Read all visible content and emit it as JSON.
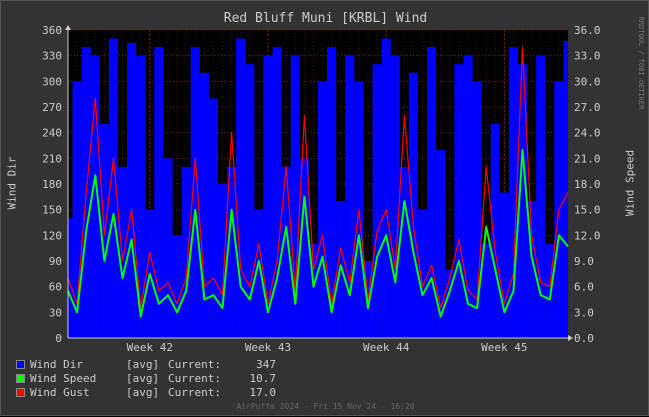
{
  "title": "Red Bluff Muni [KRBL] Wind",
  "left_axis_label": "Wind Dir",
  "right_axis_label": "Wind Speed",
  "watermark": "RRDTOOL / TOBI OETIKER",
  "footer": "AirPuffm 2024 - Fri 15 Nov 24 - 16:20",
  "colors": {
    "background": "#333333",
    "plot_area": "#000000",
    "grid": "#7a2020",
    "wind_dir": "#0000ff",
    "wind_speed": "#00ff00",
    "wind_gust": "#ff0000",
    "text": "#cccccc"
  },
  "legend": [
    {
      "name": "Wind Dir",
      "kind": "[avg]",
      "current_label": "Current:",
      "current": "347",
      "color": "#0000ff"
    },
    {
      "name": "Wind Speed",
      "kind": "[avg]",
      "current_label": "Current:",
      "current": "10.7",
      "color": "#00ff00"
    },
    {
      "name": "Wind Gust",
      "kind": "[avg]",
      "current_label": "Current:",
      "current": "17.0",
      "color": "#ff0000"
    }
  ],
  "chart_data": {
    "type": "line",
    "title": "Red Bluff Muni [KRBL] Wind",
    "ylabel": "Wind Dir",
    "y2label": "Wind Speed",
    "ylim": [
      0,
      360
    ],
    "y2lim": [
      0,
      36
    ],
    "y_ticks": [
      "0",
      "30",
      "60",
      "90",
      "120",
      "150",
      "180",
      "210",
      "240",
      "270",
      "300",
      "330",
      "360"
    ],
    "y2_ticks": [
      "0.0",
      "3.0",
      "6.0",
      "9.0",
      "12.0",
      "15.0",
      "18.0",
      "21.0",
      "24.0",
      "27.0",
      "30.0",
      "33.0",
      "36.0"
    ],
    "x_ticks": [
      {
        "label": "Week 42",
        "pos": 9
      },
      {
        "label": "Week 43",
        "pos": 22
      },
      {
        "label": "Week 44",
        "pos": 35
      },
      {
        "label": "Week 45",
        "pos": 48
      }
    ],
    "grid": true,
    "series": [
      {
        "name": "Wind Dir",
        "axis": "left",
        "values": [
          140,
          300,
          340,
          330,
          250,
          350,
          200,
          345,
          330,
          150,
          340,
          210,
          120,
          200,
          340,
          310,
          280,
          180,
          200,
          350,
          320,
          150,
          330,
          340,
          200,
          330,
          210,
          110,
          300,
          340,
          160,
          330,
          300,
          90,
          320,
          350,
          330,
          200,
          310,
          150,
          340,
          220,
          80,
          320,
          330,
          300,
          110,
          250,
          170,
          340,
          320,
          160,
          330,
          110,
          300,
          347
        ]
      },
      {
        "name": "Wind Speed",
        "axis": "right",
        "values": [
          5.5,
          3.0,
          12.5,
          19.0,
          9.0,
          14.5,
          7.0,
          11.5,
          2.5,
          7.5,
          4.0,
          5.0,
          3.0,
          5.5,
          15.0,
          4.5,
          5.0,
          3.5,
          15.0,
          6.0,
          4.5,
          9.0,
          3.0,
          7.0,
          13.0,
          4.0,
          16.5,
          6.0,
          9.5,
          3.0,
          8.5,
          5.0,
          12.0,
          3.5,
          9.5,
          12.0,
          6.5,
          16.0,
          10.0,
          5.0,
          7.0,
          2.5,
          5.5,
          9.0,
          4.0,
          3.5,
          13.0,
          8.0,
          3.0,
          5.5,
          22.0,
          9.5,
          5.0,
          4.5,
          12.0,
          10.7
        ]
      },
      {
        "name": "Wind Gust",
        "axis": "right",
        "values": [
          7.0,
          4.0,
          17.0,
          28.0,
          12.0,
          21.0,
          9.0,
          15.0,
          3.5,
          10.0,
          5.5,
          6.5,
          4.0,
          7.0,
          21.0,
          6.0,
          7.0,
          5.0,
          24.0,
          8.0,
          6.0,
          11.0,
          4.0,
          9.0,
          20.0,
          5.5,
          26.0,
          8.0,
          12.0,
          4.0,
          10.5,
          6.5,
          15.0,
          4.5,
          12.5,
          15.0,
          8.0,
          26.0,
          13.0,
          6.0,
          8.5,
          3.5,
          7.0,
          11.5,
          5.5,
          4.5,
          20.0,
          10.0,
          4.0,
          7.5,
          34.0,
          12.0,
          6.5,
          6.0,
          15.0,
          17.0
        ]
      }
    ]
  }
}
